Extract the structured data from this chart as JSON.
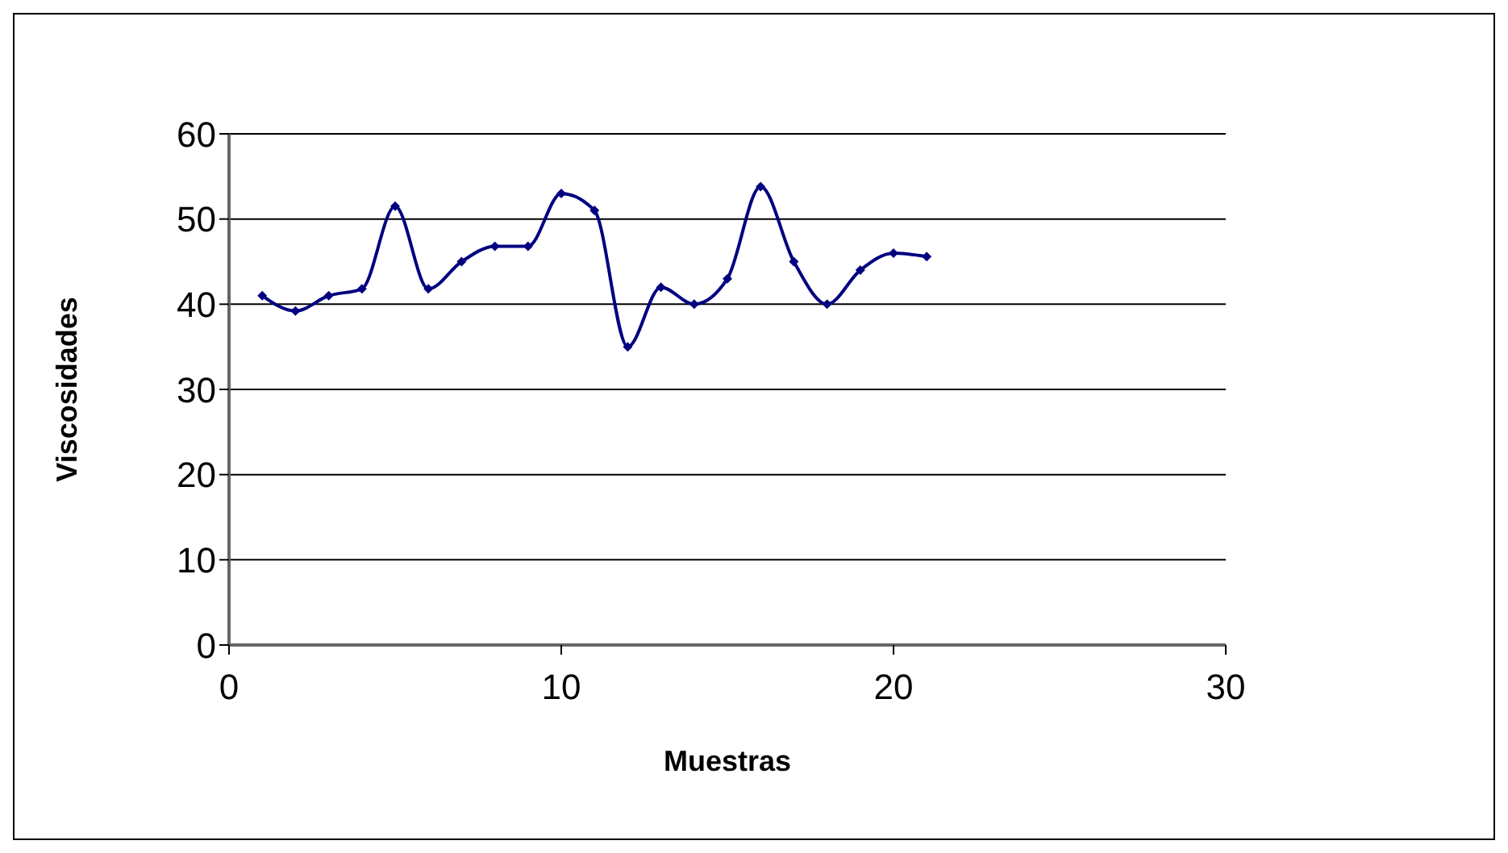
{
  "chart_data": {
    "type": "line",
    "xlabel": "Muestras",
    "ylabel": "Viscosidades",
    "x": [
      1,
      2,
      3,
      4,
      5,
      6,
      7,
      8,
      9,
      10,
      11,
      12,
      13,
      14,
      15,
      16,
      17,
      18,
      19,
      20,
      21
    ],
    "series": [
      {
        "color": "#000080",
        "values": [
          41,
          39.2,
          41,
          41.8,
          51.5,
          41.8,
          45,
          46.8,
          46.8,
          53,
          51,
          35,
          42,
          40,
          43,
          53.8,
          45,
          40,
          44,
          46,
          45.6
        ]
      }
    ],
    "xlim": [
      0,
      30
    ],
    "xticks": [
      0,
      10,
      20,
      30
    ],
    "ylim": [
      0,
      60
    ],
    "yticks": [
      0,
      10,
      20,
      30,
      40,
      50,
      60
    ],
    "grid": "y",
    "marker": "diamond",
    "line_style": "solid"
  }
}
